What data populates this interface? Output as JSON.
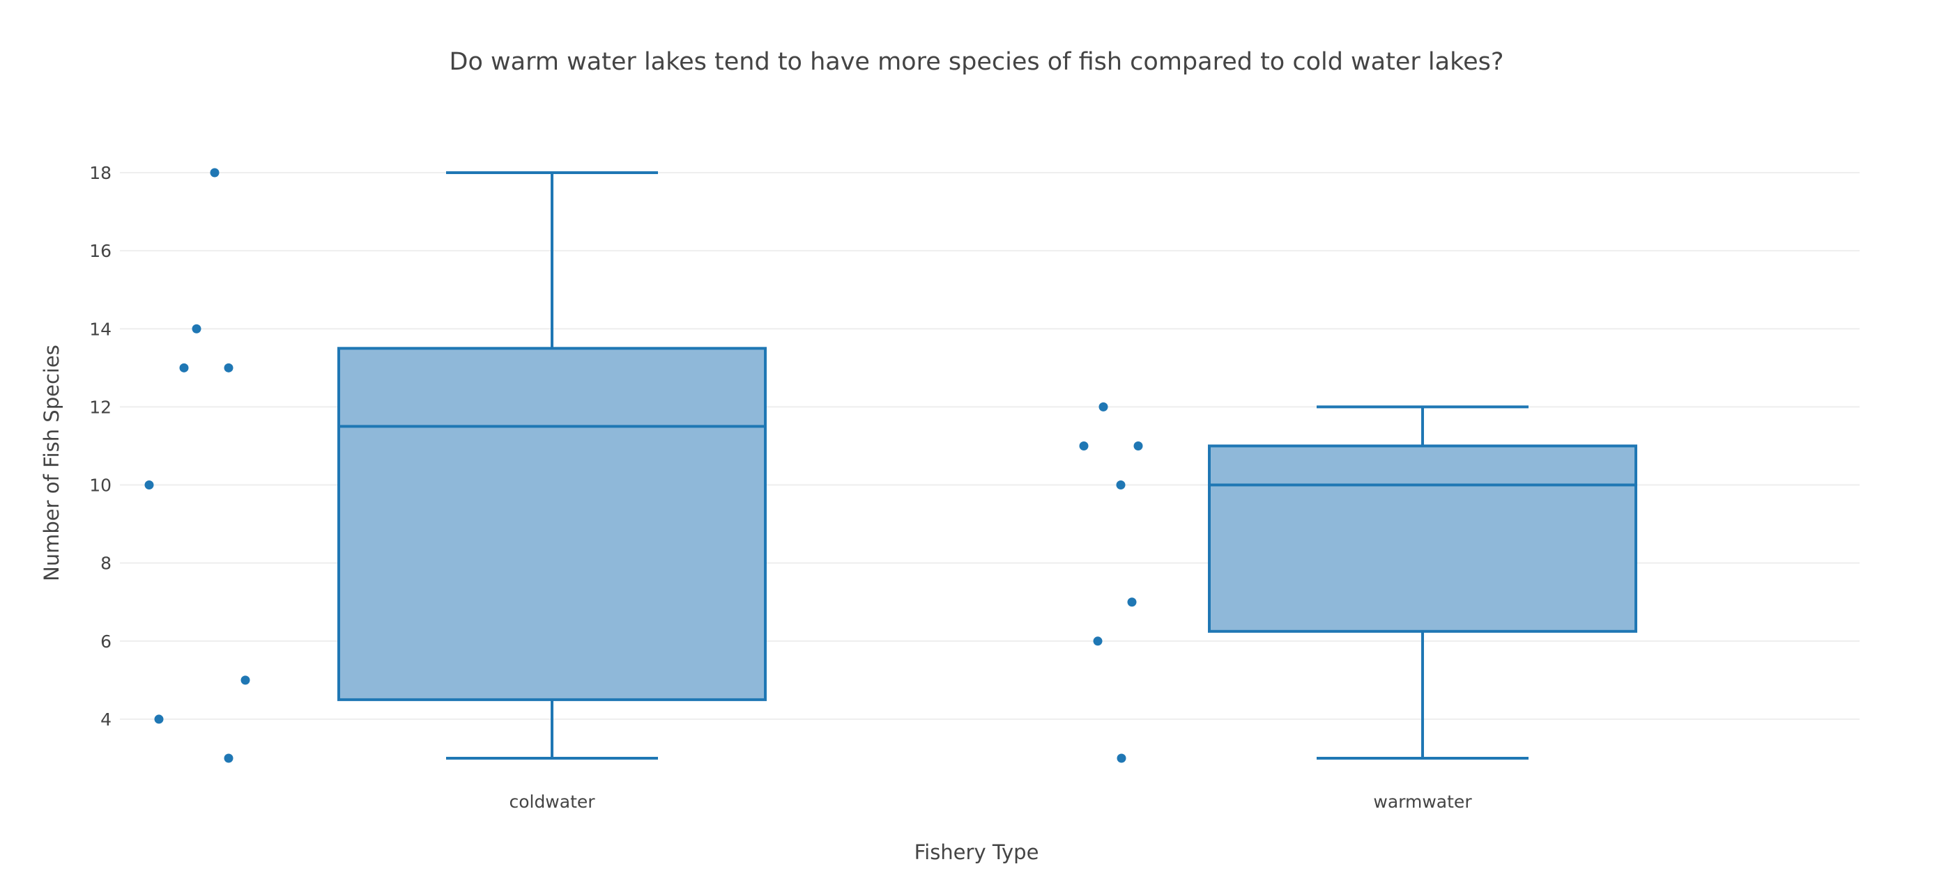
{
  "chart_data": {
    "type": "box",
    "title": "Do warm water lakes tend to have more species of fish compared to cold water lakes?",
    "xlabel": "Fishery Type",
    "ylabel": "Number of Fish Species",
    "categories": [
      "coldwater",
      "warmwater"
    ],
    "yticks": [
      4,
      6,
      8,
      10,
      12,
      14,
      16,
      18
    ],
    "ylim": [
      2.4,
      18.6
    ],
    "grid": "horizontal",
    "color": "#1f77b4",
    "box_fill": "#8fb8d9",
    "boxes": [
      {
        "category": "coldwater",
        "min": 3,
        "q1": 4.5,
        "median": 11.5,
        "q3": 13.5,
        "max": 18,
        "points": [
          18,
          14,
          13,
          13,
          10,
          5,
          4,
          3
        ]
      },
      {
        "category": "warmwater",
        "min": 3,
        "q1": 6.25,
        "median": 10,
        "q3": 11,
        "max": 12,
        "points": [
          12,
          11,
          11,
          10,
          7,
          6,
          3
        ]
      }
    ]
  }
}
